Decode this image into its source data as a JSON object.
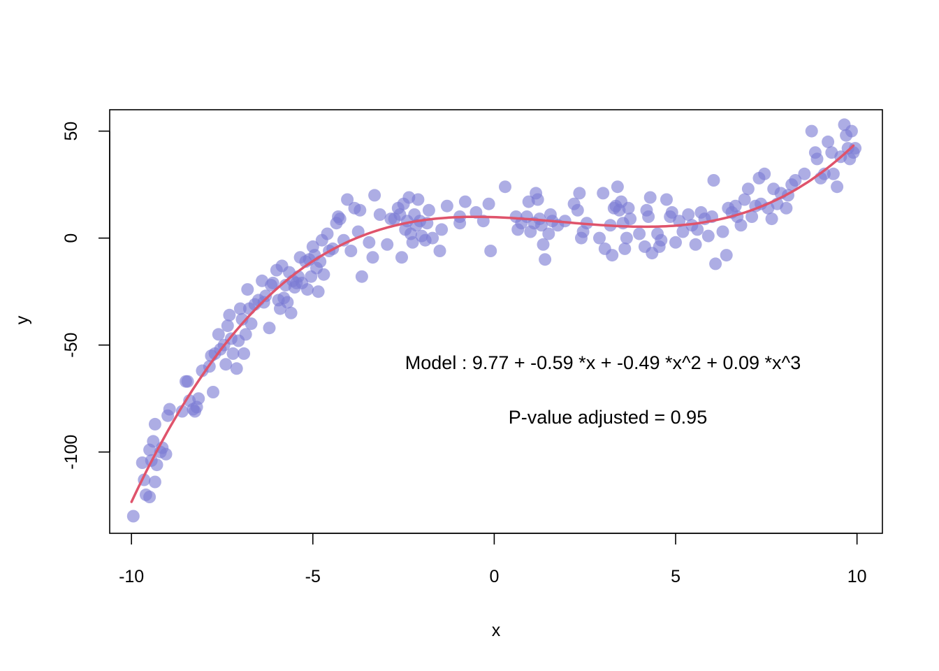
{
  "chart_data": {
    "type": "scatter",
    "title": "",
    "xlabel": "x",
    "ylabel": "y",
    "xlim": [
      -10.6,
      10.7
    ],
    "ylim": [
      -138,
      60
    ],
    "grid": false,
    "x_ticks": [
      -10,
      -5,
      0,
      5,
      10
    ],
    "x_tick_labels": [
      "-10",
      "-5",
      "0",
      "5",
      "10"
    ],
    "y_ticks": [
      -100,
      -50,
      0,
      50
    ],
    "y_tick_labels": [
      "-100",
      "-50",
      "0",
      "50"
    ],
    "point_color": "#7b7bd4",
    "fit_color": "#df536b",
    "fit": {
      "type": "cubic",
      "coefficients": [
        9.77,
        -0.59,
        -0.49,
        0.09
      ],
      "x_range": [
        -10,
        9.9
      ]
    },
    "annotations": {
      "model": "Model :  9.77  +  -0.59 *x + -0.49 *x^2 + 0.09 *x^3",
      "pvalue": "P-value adjusted =  0.95"
    },
    "points": [
      [
        -9.95,
        -130
      ],
      [
        -9.7,
        -105
      ],
      [
        -9.65,
        -113
      ],
      [
        -9.6,
        -120
      ],
      [
        -9.5,
        -121
      ],
      [
        -9.5,
        -99
      ],
      [
        -9.45,
        -104
      ],
      [
        -9.4,
        -95
      ],
      [
        -9.35,
        -114
      ],
      [
        -9.35,
        -87
      ],
      [
        -9.3,
        -106
      ],
      [
        -9.2,
        -100
      ],
      [
        -9.15,
        -98
      ],
      [
        -9.05,
        -101
      ],
      [
        -9.0,
        -83
      ],
      [
        -8.95,
        -80
      ],
      [
        -8.6,
        -81
      ],
      [
        -8.5,
        -67
      ],
      [
        -8.45,
        -67
      ],
      [
        -8.4,
        -76
      ],
      [
        -8.3,
        -80
      ],
      [
        -8.25,
        -81
      ],
      [
        -8.2,
        -79
      ],
      [
        -8.15,
        -75
      ],
      [
        -8.05,
        -62
      ],
      [
        -7.85,
        -60
      ],
      [
        -7.8,
        -55
      ],
      [
        -7.75,
        -72
      ],
      [
        -7.7,
        -54
      ],
      [
        -7.6,
        -45
      ],
      [
        -7.55,
        -52
      ],
      [
        -7.45,
        -50
      ],
      [
        -7.4,
        -59
      ],
      [
        -7.35,
        -41
      ],
      [
        -7.3,
        -36
      ],
      [
        -7.25,
        -47
      ],
      [
        -7.2,
        -54
      ],
      [
        -7.1,
        -61
      ],
      [
        -7.05,
        -48
      ],
      [
        -7.0,
        -33
      ],
      [
        -6.95,
        -38
      ],
      [
        -6.9,
        -54
      ],
      [
        -6.85,
        -45
      ],
      [
        -6.8,
        -24
      ],
      [
        -6.75,
        -33
      ],
      [
        -6.7,
        -40
      ],
      [
        -6.6,
        -31
      ],
      [
        -6.5,
        -29
      ],
      [
        -6.4,
        -20
      ],
      [
        -6.35,
        -30
      ],
      [
        -6.3,
        -27
      ],
      [
        -6.2,
        -42
      ],
      [
        -6.15,
        -22
      ],
      [
        -6.1,
        -21
      ],
      [
        -6.0,
        -15
      ],
      [
        -5.95,
        -29
      ],
      [
        -5.9,
        -33
      ],
      [
        -5.85,
        -13
      ],
      [
        -5.8,
        -28
      ],
      [
        -5.75,
        -22
      ],
      [
        -5.7,
        -30
      ],
      [
        -5.65,
        -16
      ],
      [
        -5.6,
        -35
      ],
      [
        -5.55,
        -20
      ],
      [
        -5.5,
        -23
      ],
      [
        -5.45,
        -21
      ],
      [
        -5.4,
        -18
      ],
      [
        -5.35,
        -9
      ],
      [
        -5.3,
        -21
      ],
      [
        -5.2,
        -11
      ],
      [
        -5.15,
        -24
      ],
      [
        -5.1,
        -10
      ],
      [
        -5.05,
        -18
      ],
      [
        -5.0,
        -4
      ],
      [
        -4.95,
        -8
      ],
      [
        -4.9,
        -14
      ],
      [
        -4.85,
        -25
      ],
      [
        -4.8,
        -11
      ],
      [
        -4.75,
        -1
      ],
      [
        -4.7,
        -17
      ],
      [
        -4.6,
        2
      ],
      [
        -4.55,
        -6
      ],
      [
        -4.45,
        -5
      ],
      [
        -4.35,
        7
      ],
      [
        -4.3,
        10
      ],
      [
        -4.25,
        9
      ],
      [
        -4.15,
        -1
      ],
      [
        -4.05,
        18
      ],
      [
        -3.95,
        -6
      ],
      [
        -3.85,
        14
      ],
      [
        -3.75,
        3
      ],
      [
        -3.7,
        13
      ],
      [
        -3.65,
        -18
      ],
      [
        -3.45,
        -2
      ],
      [
        -3.35,
        -9
      ],
      [
        -3.3,
        20
      ],
      [
        -3.15,
        11
      ],
      [
        -2.95,
        -3
      ],
      [
        -2.85,
        9
      ],
      [
        -2.75,
        9
      ],
      [
        -2.65,
        14
      ],
      [
        -2.6,
        11
      ],
      [
        -2.55,
        -9
      ],
      [
        -2.5,
        16
      ],
      [
        -2.45,
        4
      ],
      [
        -2.4,
        8
      ],
      [
        -2.35,
        19
      ],
      [
        -2.3,
        2
      ],
      [
        -2.25,
        -2
      ],
      [
        -2.2,
        11
      ],
      [
        -2.15,
        6
      ],
      [
        -2.1,
        18
      ],
      [
        -2.05,
        8
      ],
      [
        -2.0,
        1
      ],
      [
        -1.9,
        -1
      ],
      [
        -1.85,
        7
      ],
      [
        -1.8,
        13
      ],
      [
        -1.7,
        0
      ],
      [
        -1.5,
        -6
      ],
      [
        -1.3,
        15
      ],
      [
        -1.45,
        4
      ],
      [
        -0.95,
        7
      ],
      [
        -0.95,
        10
      ],
      [
        -0.8,
        17
      ],
      [
        -0.5,
        12
      ],
      [
        -0.3,
        8
      ],
      [
        -0.15,
        16
      ],
      [
        -0.1,
        -6
      ],
      [
        0.3,
        24
      ],
      [
        0.6,
        10
      ],
      [
        0.65,
        4
      ],
      [
        0.75,
        7
      ],
      [
        0.9,
        10
      ],
      [
        0.95,
        17
      ],
      [
        1.0,
        3
      ],
      [
        1.1,
        7
      ],
      [
        1.15,
        21
      ],
      [
        1.2,
        18
      ],
      [
        1.25,
        9
      ],
      [
        1.3,
        6
      ],
      [
        1.35,
        -3
      ],
      [
        1.4,
        -10
      ],
      [
        1.5,
        2
      ],
      [
        1.55,
        11
      ],
      [
        1.6,
        8
      ],
      [
        1.75,
        6
      ],
      [
        1.95,
        8
      ],
      [
        2.2,
        16
      ],
      [
        2.3,
        13
      ],
      [
        2.35,
        21
      ],
      [
        2.4,
        0
      ],
      [
        2.45,
        3
      ],
      [
        2.55,
        7
      ],
      [
        2.9,
        0
      ],
      [
        3.0,
        21
      ],
      [
        3.05,
        -5
      ],
      [
        3.2,
        6
      ],
      [
        3.25,
        -8
      ],
      [
        3.3,
        14
      ],
      [
        3.35,
        15
      ],
      [
        3.4,
        24
      ],
      [
        3.45,
        13
      ],
      [
        3.5,
        17
      ],
      [
        3.55,
        7
      ],
      [
        3.6,
        -5
      ],
      [
        3.65,
        0
      ],
      [
        3.7,
        14
      ],
      [
        3.75,
        9
      ],
      [
        4.0,
        2
      ],
      [
        4.15,
        -4
      ],
      [
        4.2,
        13
      ],
      [
        4.25,
        10
      ],
      [
        4.3,
        19
      ],
      [
        4.35,
        -7
      ],
      [
        4.5,
        2
      ],
      [
        4.55,
        -4
      ],
      [
        4.6,
        -1
      ],
      [
        4.75,
        18
      ],
      [
        4.85,
        10
      ],
      [
        4.9,
        12
      ],
      [
        5.0,
        -2
      ],
      [
        5.1,
        8
      ],
      [
        5.2,
        3
      ],
      [
        5.35,
        11
      ],
      [
        5.45,
        6
      ],
      [
        5.55,
        -3
      ],
      [
        5.6,
        4
      ],
      [
        5.7,
        12
      ],
      [
        5.8,
        9
      ],
      [
        5.9,
        1
      ],
      [
        6.0,
        10
      ],
      [
        6.05,
        27
      ],
      [
        6.1,
        -12
      ],
      [
        6.3,
        3
      ],
      [
        6.4,
        -8
      ],
      [
        6.45,
        14
      ],
      [
        6.55,
        12
      ],
      [
        6.65,
        15
      ],
      [
        6.7,
        10
      ],
      [
        6.8,
        6
      ],
      [
        6.9,
        18
      ],
      [
        7.0,
        23
      ],
      [
        7.1,
        10
      ],
      [
        7.2,
        15
      ],
      [
        7.3,
        28
      ],
      [
        7.35,
        16
      ],
      [
        7.45,
        30
      ],
      [
        7.55,
        14
      ],
      [
        7.65,
        9
      ],
      [
        7.7,
        23
      ],
      [
        7.8,
        16
      ],
      [
        7.9,
        21
      ],
      [
        8.05,
        14
      ],
      [
        8.1,
        20
      ],
      [
        8.2,
        25
      ],
      [
        8.3,
        27
      ],
      [
        8.55,
        30
      ],
      [
        8.75,
        50
      ],
      [
        8.85,
        40
      ],
      [
        8.9,
        37
      ],
      [
        9.0,
        28
      ],
      [
        9.1,
        30
      ],
      [
        9.2,
        45
      ],
      [
        9.3,
        40
      ],
      [
        9.35,
        30
      ],
      [
        9.45,
        24
      ],
      [
        9.55,
        38
      ],
      [
        9.65,
        53
      ],
      [
        9.7,
        48
      ],
      [
        9.75,
        42
      ],
      [
        9.8,
        37
      ],
      [
        9.85,
        50
      ],
      [
        9.9,
        40
      ],
      [
        9.95,
        42
      ]
    ]
  }
}
